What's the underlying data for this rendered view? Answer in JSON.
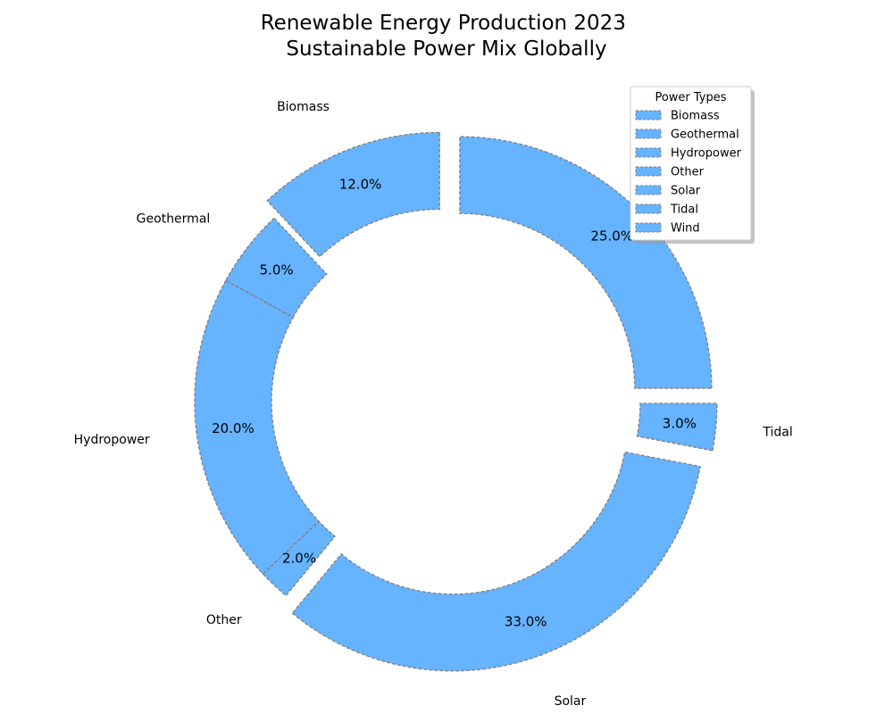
{
  "chart_data": {
    "type": "pie",
    "style": "donut",
    "title": "Renewable Energy Production 2023\nSustainable Power Mix Globally",
    "categories": [
      "Biomass",
      "Geothermal",
      "Hydropower",
      "Other",
      "Solar",
      "Tidal",
      "Wind"
    ],
    "values": [
      12.0,
      5.0,
      20.0,
      2.0,
      33.0,
      3.0,
      25.0
    ],
    "value_labels": [
      "12.0%",
      "5.0%",
      "20.0%",
      "2.0%",
      "33.0%",
      "3.0%",
      "25.0%"
    ],
    "exploded": [
      "Biomass",
      "Solar",
      "Tidal",
      "Wind"
    ],
    "slice_color": "#66b3ff",
    "edge_color": "#808080",
    "edge_style": "dashed",
    "legend": {
      "title": "Power Types",
      "placement": "top-right",
      "entries": [
        "Biomass",
        "Geothermal",
        "Hydropower",
        "Other",
        "Solar",
        "Tidal",
        "Wind"
      ]
    }
  }
}
